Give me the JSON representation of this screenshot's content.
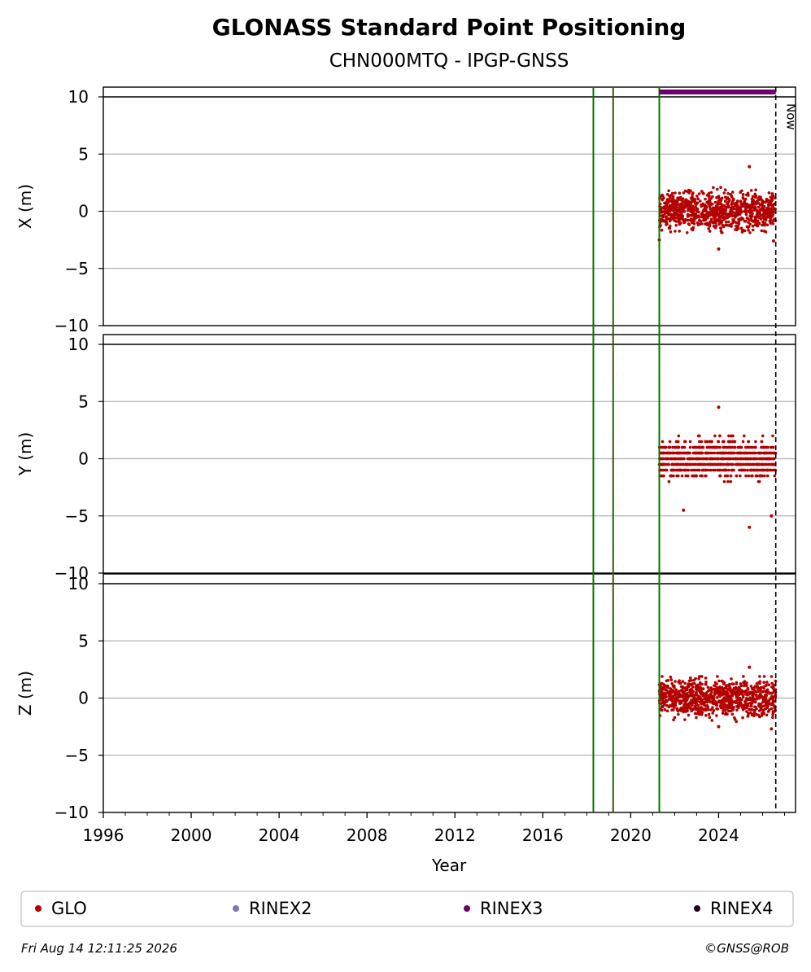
{
  "chart_data": {
    "type": "scatter",
    "title": "GLONASS Standard Point Positioning",
    "subtitle": "CHN000MTQ - IPGP-GNSS",
    "xlabel": "Year",
    "xlim": [
      1996.0,
      2027.5
    ],
    "xticks": [
      "1996",
      "2000",
      "2004",
      "2008",
      "2012",
      "2016",
      "2020",
      "2024"
    ],
    "grid": true,
    "panels": [
      {
        "ylabel": "X (m)",
        "ylim": [
          -10,
          10
        ],
        "yticks": [
          "10",
          "5",
          "0",
          "−5",
          "−10"
        ],
        "series": [
          {
            "name": "GLO",
            "color": "#b30000",
            "x_range": [
              2021.3,
              2026.6
            ],
            "values_center": 0.0,
            "spread": [
              -2.5,
              3.9
            ],
            "notable_points": [
              [
                2025.4,
                3.9
              ],
              [
                2024.0,
                -3.3
              ],
              [
                2021.3,
                -2.5
              ],
              [
                2026.5,
                -2.6
              ]
            ]
          }
        ]
      },
      {
        "ylabel": "Y (m)",
        "ylim": [
          -10,
          10
        ],
        "yticks": [
          "10",
          "5",
          "0",
          "−5",
          "−10"
        ],
        "series": [
          {
            "name": "GLO",
            "color": "#b30000",
            "x_range": [
              2021.3,
              2026.6
            ],
            "values_center": 0.0,
            "spread": [
              -5.0,
              4.6
            ],
            "notable_points": [
              [
                2024.0,
                4.5
              ],
              [
                2025.4,
                -6.0
              ],
              [
                2022.4,
                -4.5
              ],
              [
                2026.4,
                -5.0
              ]
            ]
          }
        ]
      },
      {
        "ylabel": "Z (m)",
        "ylim": [
          -10,
          10
        ],
        "yticks": [
          "10",
          "5",
          "0",
          "−5",
          "−10"
        ],
        "series": [
          {
            "name": "GLO",
            "color": "#b30000",
            "x_range": [
              2021.3,
              2026.6
            ],
            "values_center": 0.0,
            "spread": [
              -2.8,
              2.7
            ],
            "notable_points": [
              [
                2025.4,
                2.7
              ],
              [
                2024.0,
                -2.5
              ],
              [
                2026.4,
                -2.7
              ]
            ]
          }
        ]
      }
    ],
    "event_lines": [
      2018.3,
      2019.2,
      2021.3
    ],
    "rinex3_bar": [
      2021.3,
      2026.6
    ],
    "now_line": 2026.6,
    "now_label": "Now",
    "legend": {
      "placement": "bottom",
      "entries": [
        {
          "label": "GLO",
          "color": "#b30000"
        },
        {
          "label": "RINEX2",
          "color": "#7b78b8"
        },
        {
          "label": "RINEX3",
          "color": "#6e006e"
        },
        {
          "label": "RINEX4",
          "color": "#2a0020"
        }
      ]
    },
    "footer_left": "Fri Aug 14 12:11:25 2026",
    "footer_right": "©GNSS@ROB"
  }
}
